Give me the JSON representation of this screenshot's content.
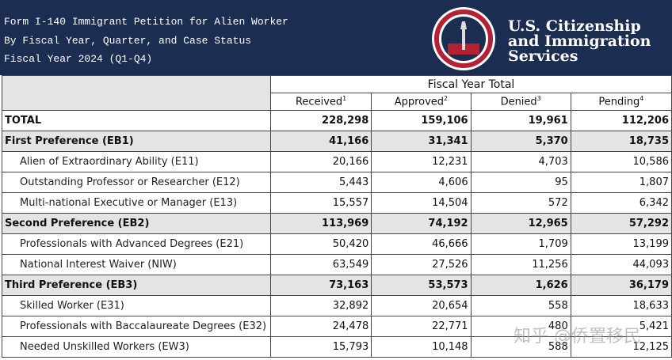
{
  "header": {
    "lines": [
      "Form I-140 Immigrant Petition for Alien Worker",
      "By Fiscal Year, Quarter, and Case Status",
      "Fiscal Year 2024 (Q1-Q4)"
    ],
    "agency": [
      "U.S. Citizenship",
      "and Immigration",
      "Services"
    ]
  },
  "table": {
    "group_header": "Fiscal Year Total",
    "columns": [
      {
        "label": "Received",
        "note": "1"
      },
      {
        "label": "Approved",
        "note": "2"
      },
      {
        "label": "Denied",
        "note": "3"
      },
      {
        "label": "Pending",
        "note": "4"
      }
    ],
    "rows": [
      {
        "kind": "total",
        "label": "TOTAL",
        "values": [
          "228,298",
          "159,106",
          "19,961",
          "112,206"
        ]
      },
      {
        "kind": "group",
        "label": "First Preference (EB1)",
        "values": [
          "41,166",
          "31,341",
          "5,370",
          "18,735"
        ]
      },
      {
        "kind": "item",
        "label": "Alien of Extraordinary Ability (E11)",
        "values": [
          "20,166",
          "12,231",
          "4,703",
          "10,586"
        ]
      },
      {
        "kind": "item",
        "label": "Outstanding Professor or Researcher (E12)",
        "values": [
          "5,443",
          "4,606",
          "95",
          "1,807"
        ]
      },
      {
        "kind": "item",
        "label": "Multi-national Executive or Manager (E13)",
        "values": [
          "15,557",
          "14,504",
          "572",
          "6,342"
        ]
      },
      {
        "kind": "group",
        "label": "Second Preference (EB2)",
        "values": [
          "113,969",
          "74,192",
          "12,965",
          "57,292"
        ]
      },
      {
        "kind": "item",
        "label": "Professionals with Advanced Degrees (E21)",
        "values": [
          "50,420",
          "46,666",
          "1,709",
          "13,199"
        ]
      },
      {
        "kind": "item",
        "label": "National Interest Waiver (NIW)",
        "values": [
          "63,549",
          "27,526",
          "11,256",
          "44,093"
        ]
      },
      {
        "kind": "group",
        "label": "Third Preference (EB3)",
        "values": [
          "73,163",
          "53,573",
          "1,626",
          "36,179"
        ]
      },
      {
        "kind": "item",
        "label": "Skilled Worker (E31)",
        "values": [
          "32,892",
          "20,654",
          "558",
          "18,633"
        ]
      },
      {
        "kind": "item",
        "label": "Professionals with Baccalaureate Degrees (E32)",
        "values": [
          "24,478",
          "22,771",
          "480",
          "5,421"
        ]
      },
      {
        "kind": "item",
        "label": "Needed Unskilled Workers (EW3)",
        "values": [
          "15,793",
          "10,148",
          "588",
          "12,125"
        ]
      }
    ]
  },
  "watermark": "知乎 @侨置移民"
}
